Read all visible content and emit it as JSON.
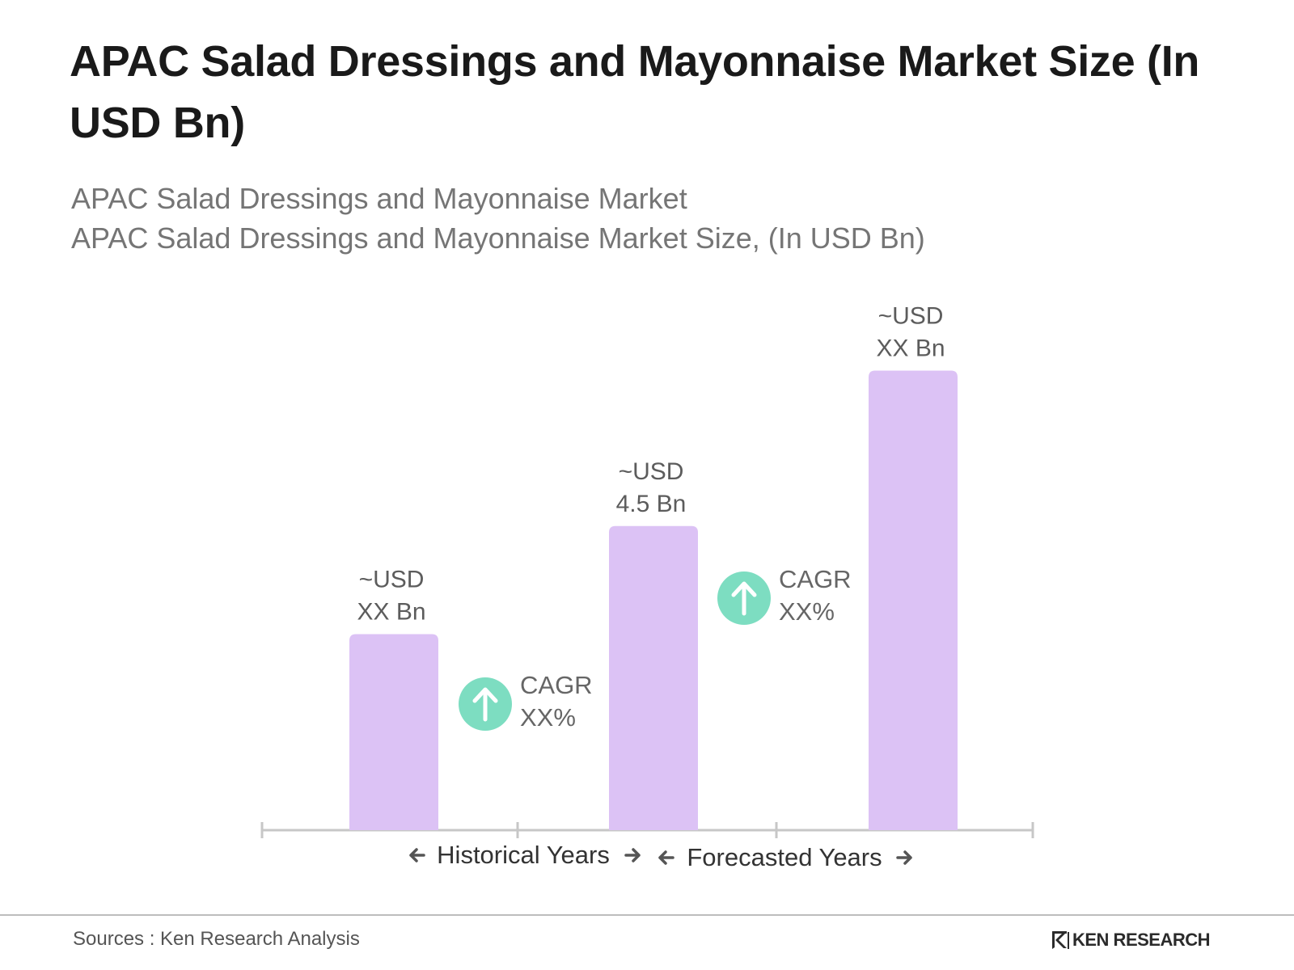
{
  "title": "APAC Salad Dressings and Mayonnaise Market Size (In USD Bn)",
  "subtitle_1": "APAC Salad Dressings and Mayonnaise Market",
  "subtitle_2": "APAC Salad Dressings and Mayonnaise Market Size, (In USD Bn)",
  "chart_data": {
    "type": "bar",
    "categories": [
      "",
      "",
      ""
    ],
    "values": [
      2.9,
      4.5,
      6.8
    ],
    "data_labels": [
      [
        "~USD",
        "XX Bn"
      ],
      [
        "~USD",
        "4.5 Bn"
      ],
      [
        "~USD",
        "XX Bn"
      ]
    ],
    "ylim": [
      0,
      7.5
    ],
    "grid": false,
    "bar_color": "#dcc2f5",
    "annotations": [
      {
        "label_1": "CAGR",
        "label_2": "XX%",
        "between": [
          0,
          1
        ]
      },
      {
        "label_1": "CAGR",
        "label_2": "XX%",
        "between": [
          1,
          2
        ]
      }
    ],
    "periods": [
      {
        "label": "Historical Years"
      },
      {
        "label": "Forecasted Years"
      }
    ],
    "accent_color": "#7dddc1",
    "axis_color": "#c7c7c7"
  },
  "footer": {
    "source": "Sources : Ken Research Analysis",
    "brand": "KEN RESEARCH",
    "brand_icon": "ken-research-logo-icon"
  }
}
